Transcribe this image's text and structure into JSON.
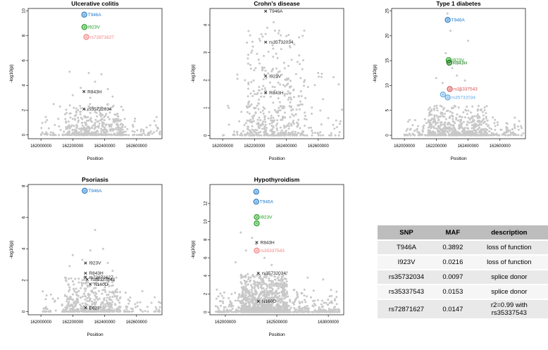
{
  "colors": {
    "bg_points": "#c8c8c8",
    "blue": "#1f78c8",
    "lightblue": "#62a9e6",
    "green": "#1a9a1a",
    "darkgreen": "#0a6e0a",
    "red": "#d9534f",
    "salmon": "#f08080",
    "black": "#222222"
  },
  "chart_data": [
    {
      "type": "scatter",
      "title": "Ulcerative colitis",
      "xlabel": "Position",
      "ylabel": "-log10(p)",
      "xlim": [
        161920000,
        162760000
      ],
      "ylim": [
        -0.3,
        10.2
      ],
      "xticks": [
        162000000,
        162200000,
        162400000,
        162600000
      ],
      "xtick_labels": [
        "162000000",
        "162200000",
        "162400000",
        "162600000"
      ],
      "yticks": [
        0,
        2,
        4,
        6,
        8,
        10
      ],
      "ytick_labels": [
        "0",
        "2",
        "4",
        "6",
        "8",
        "10"
      ],
      "background": {
        "x_range": [
          162000000,
          162750000
        ],
        "core": [
          162150000,
          162520000
        ],
        "peak": 2.5,
        "scatter": [
          [
            162180000,
            5.1
          ],
          [
            162300000,
            5.0
          ],
          [
            162380000,
            4.9
          ],
          [
            162340000,
            4.3
          ],
          [
            162250000,
            3.8
          ],
          [
            162420000,
            3.7
          ],
          [
            162200000,
            3.2
          ],
          [
            162310000,
            3.0
          ],
          [
            162450000,
            3.1
          ],
          [
            162080000,
            2.5
          ],
          [
            162120000,
            2.3
          ],
          [
            162360000,
            2.2
          ]
        ]
      },
      "highlights": [
        {
          "label": "T946A",
          "x": 162272000,
          "y": 9.7,
          "color": "#1f78c8",
          "marker": "ring"
        },
        {
          "label": "I923V",
          "x": 162273000,
          "y": 8.7,
          "color": "#1a9a1a",
          "marker": "ring"
        },
        {
          "label": "rs72871627",
          "x": 162285000,
          "y": 7.9,
          "color": "#f08080",
          "marker": "ring"
        },
        {
          "label": "R843H",
          "x": 162270000,
          "y": 3.5,
          "color": "#222222",
          "marker": "x"
        },
        {
          "label": "rs35732034",
          "x": 162270000,
          "y": 2.1,
          "color": "#222222",
          "marker": "x"
        }
      ]
    },
    {
      "type": "scatter",
      "title": "Crohn's disease",
      "xlabel": "Position",
      "ylabel": "-log10(p)",
      "xlim": [
        161920000,
        162760000
      ],
      "ylim": [
        -0.12,
        4.6
      ],
      "xticks": [
        162000000,
        162200000,
        162400000,
        162600000
      ],
      "xtick_labels": [
        "162000000",
        "162200000",
        "162400000",
        "162600000"
      ],
      "yticks": [
        0,
        1,
        2,
        3,
        4
      ],
      "ytick_labels": [
        "0",
        "1",
        "2",
        "3",
        "4"
      ],
      "background": {
        "x_range": [
          162000000,
          162750000
        ],
        "core": [
          162150000,
          162520000
        ],
        "peak": 3.9,
        "scatter": [
          [
            162320000,
            4.1
          ],
          [
            162280000,
            3.9
          ],
          [
            162350000,
            3.7
          ],
          [
            162230000,
            3.5
          ],
          [
            162400000,
            3.6
          ],
          [
            162450000,
            3.3
          ],
          [
            162180000,
            3.0
          ],
          [
            162480000,
            2.9
          ],
          [
            162160000,
            2.6
          ],
          [
            162500000,
            2.4
          ],
          [
            162140000,
            2.0
          ],
          [
            162510000,
            1.8
          ]
        ]
      },
      "highlights": [
        {
          "label": "T946A",
          "x": 162270000,
          "y": 4.5,
          "color": "#222222",
          "marker": "x"
        },
        {
          "label": "rs35732034",
          "x": 162270000,
          "y": 3.38,
          "color": "#222222",
          "marker": "x"
        },
        {
          "label": "I923V",
          "x": 162270000,
          "y": 2.15,
          "color": "#222222",
          "marker": "x"
        },
        {
          "label": "R843H",
          "x": 162270000,
          "y": 1.55,
          "color": "#222222",
          "marker": "x"
        }
      ]
    },
    {
      "type": "scatter",
      "title": "Type 1 diabetes",
      "xlabel": "Position",
      "ylabel": "-log10(p)",
      "xlim": [
        161920000,
        162760000
      ],
      "ylim": [
        -0.7,
        25.5
      ],
      "xticks": [
        162000000,
        162200000,
        162400000,
        162600000
      ],
      "xtick_labels": [
        "162000000",
        "162200000",
        "162400000",
        "162600000"
      ],
      "yticks": [
        0,
        5,
        10,
        15,
        20,
        25
      ],
      "ytick_labels": [
        "0",
        "5",
        "10",
        "15",
        "20",
        "25"
      ],
      "background": {
        "x_range": [
          162000000,
          162750000
        ],
        "core": [
          162150000,
          162520000
        ],
        "peak": 6.0,
        "scatter": [
          [
            162270000,
            24.5
          ],
          [
            162290000,
            21.0
          ],
          [
            162400000,
            19.0
          ],
          [
            162260000,
            16.5
          ],
          [
            162300000,
            13.5
          ],
          [
            162330000,
            12.0
          ],
          [
            162200000,
            11.5
          ],
          [
            162380000,
            11.0
          ],
          [
            162240000,
            10.5
          ],
          [
            162350000,
            9.0
          ]
        ]
      },
      "highlights": [
        {
          "label": "T946A",
          "x": 162272000,
          "y": 23.2,
          "color": "#1f78c8",
          "marker": "ring"
        },
        {
          "label": "I923V",
          "x": 162278000,
          "y": 15.1,
          "color": "#1a9a1a",
          "marker": "ring"
        },
        {
          "label": "R843H",
          "x": 162282000,
          "y": 14.6,
          "color": "#0a6e0a",
          "marker": "ring"
        },
        {
          "label": "rs35337543",
          "x": 162285000,
          "y": 9.3,
          "color": "#d9534f",
          "marker": "ring"
        },
        {
          "label": "",
          "x": 162242000,
          "y": 8.2,
          "color": "#62a9e6",
          "marker": "ring"
        },
        {
          "label": "rs35732034",
          "x": 162272000,
          "y": 7.6,
          "color": "#62a9e6",
          "marker": "ring"
        }
      ]
    },
    {
      "type": "scatter",
      "title": "Psoriasis",
      "xlabel": "Position",
      "ylabel": "-log10(p)",
      "xlim": [
        161920000,
        162760000
      ],
      "ylim": [
        -0.2,
        8.1
      ],
      "xticks": [
        162000000,
        162200000,
        162400000,
        162600000
      ],
      "xtick_labels": [
        "162000000",
        "162200000",
        "162400000",
        "162600000"
      ],
      "yticks": [
        0,
        2,
        4,
        6,
        8
      ],
      "ytick_labels": [
        "0",
        "2",
        "4",
        "6",
        "8"
      ],
      "background": {
        "x_range": [
          162000000,
          162750000
        ],
        "core": [
          162150000,
          162500000
        ],
        "peak": 2.2,
        "scatter": [
          [
            162340000,
            5.2
          ],
          [
            162390000,
            4.0
          ],
          [
            162310000,
            3.9
          ],
          [
            162200000,
            3.6
          ],
          [
            162260000,
            3.3
          ],
          [
            162420000,
            3.1
          ],
          [
            162180000,
            2.9
          ],
          [
            162450000,
            2.6
          ],
          [
            162030000,
            0.8
          ],
          [
            162560000,
            0.9
          ]
        ]
      },
      "highlights": [
        {
          "label": "T946A",
          "x": 162275000,
          "y": 7.7,
          "color": "#1f78c8",
          "marker": "ring"
        },
        {
          "label": "I923V",
          "x": 162280000,
          "y": 3.1,
          "color": "#222222",
          "marker": "x"
        },
        {
          "label": "R843H",
          "x": 162280000,
          "y": 2.45,
          "color": "#222222",
          "marker": "x"
        },
        {
          "label": "rs72871627",
          "x": 162280000,
          "y": 2.2,
          "color": "#222222",
          "marker": "x"
        },
        {
          "label": "rs35337543",
          "x": 162290000,
          "y": 2.05,
          "color": "#222222",
          "marker": "x"
        },
        {
          "label": "N160D",
          "x": 162310000,
          "y": 1.75,
          "color": "#222222",
          "marker": "x"
        },
        {
          "label": "E627*",
          "x": 162280000,
          "y": 0.25,
          "color": "#222222",
          "marker": "x"
        }
      ]
    },
    {
      "type": "scatter",
      "title": "Hypothyroidism",
      "xlabel": "Position",
      "ylabel": "-log10(p)",
      "xlim": [
        161850000,
        163150000
      ],
      "ylim": [
        -0.3,
        14.1
      ],
      "xticks": [
        162000000,
        162500000,
        163000000
      ],
      "xtick_labels": [
        "162000000",
        "162500000",
        "163000000"
      ],
      "yticks": [
        0,
        2,
        4,
        6,
        8,
        10,
        12
      ],
      "ytick_labels": [
        "0",
        "2",
        "4",
        "6",
        "8",
        "10",
        "12"
      ],
      "background": {
        "x_range": [
          161900000,
          163120000
        ],
        "core": [
          162150000,
          162600000
        ],
        "peak": 4.2,
        "scatter": [
          [
            162150000,
            8.8
          ],
          [
            162260000,
            8.2
          ],
          [
            162300000,
            7.5
          ],
          [
            162200000,
            6.8
          ],
          [
            162380000,
            6.0
          ],
          [
            162100000,
            5.5
          ],
          [
            162450000,
            5.2
          ],
          [
            162600000,
            4.4
          ],
          [
            162800000,
            3.8
          ],
          [
            162950000,
            3.6
          ]
        ]
      },
      "highlights": [
        {
          "label": "",
          "x": 162300000,
          "y": 13.3,
          "color": "#1f78c8",
          "marker": "ring"
        },
        {
          "label": "T946A",
          "x": 162300000,
          "y": 12.2,
          "color": "#1f78c8",
          "marker": "ring"
        },
        {
          "label": "I923V",
          "x": 162305000,
          "y": 10.5,
          "color": "#1a9a1a",
          "marker": "ring"
        },
        {
          "label": "",
          "x": 162305000,
          "y": 9.8,
          "color": "#1a9a1a",
          "marker": "ring"
        },
        {
          "label": "R843H",
          "x": 162305000,
          "y": 7.7,
          "color": "#222222",
          "marker": "x"
        },
        {
          "label": "rs35337543",
          "x": 162305000,
          "y": 6.8,
          "color": "#f08080",
          "marker": "ring"
        },
        {
          "label": "rs35732034",
          "x": 162320000,
          "y": 4.3,
          "color": "#222222",
          "marker": "x"
        },
        {
          "label": "N160D",
          "x": 162320000,
          "y": 1.2,
          "color": "#222222",
          "marker": "x"
        }
      ]
    },
    {
      "type": "table",
      "columns": [
        "SNP",
        "MAF",
        "description"
      ],
      "rows": [
        [
          "T946A",
          "0.3892",
          "loss of function"
        ],
        [
          "I923V",
          "0.0216",
          "loss of function"
        ],
        [
          "rs35732034",
          "0.0097",
          "splice donor"
        ],
        [
          "rs35337543",
          "0.0153",
          "splice donor"
        ],
        [
          "rs72871627",
          "0.0147",
          "r2=0.99 with rs35337543"
        ]
      ]
    }
  ]
}
